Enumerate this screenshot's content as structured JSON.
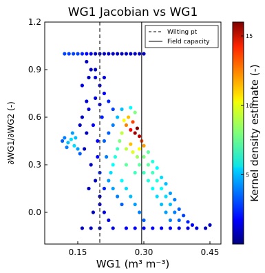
{
  "chart_data": {
    "type": "scatter",
    "title": "WG1 Jacobian vs WG1",
    "xlabel": "WG1 (m³ m⁻³)",
    "ylabel": "∂WG1/∂WG2 (-)",
    "xlim": [
      0.075,
      0.475
    ],
    "ylim": [
      -0.2,
      1.2
    ],
    "xticks": [
      "0.15",
      "0.30",
      "0.45"
    ],
    "yticks": [
      "1.2",
      "0.9",
      "0.6",
      "0.3",
      "0.0"
    ],
    "grid": false,
    "legend": {
      "placement": "top-right",
      "entries": [
        {
          "label": "Wilting pt",
          "style": "dashed",
          "x": 0.2
        },
        {
          "label": "Field capacity",
          "style": "solid",
          "x": 0.295
        }
      ]
    },
    "colorbar": {
      "label": "Kernel density estimate (-)",
      "range": [
        0,
        16
      ],
      "ticks": [
        "5",
        "10",
        "15"
      ],
      "tick_values": [
        5,
        10,
        15
      ],
      "colormap": "jet"
    },
    "series": [
      {
        "points": [
          {
            "x": 0.135,
            "y": 0.46,
            "density": 5.5
          },
          {
            "x": 0.128,
            "y": 0.44,
            "density": 5
          },
          {
            "x": 0.142,
            "y": 0.42,
            "density": 5.5
          },
          {
            "x": 0.12,
            "y": 0.47,
            "density": 4
          },
          {
            "x": 0.15,
            "y": 0.4,
            "density": 4.5
          },
          {
            "x": 0.138,
            "y": 0.5,
            "density": 4.5
          },
          {
            "x": 0.125,
            "y": 0.41,
            "density": 4
          },
          {
            "x": 0.155,
            "y": 0.37,
            "density": 3.5
          },
          {
            "x": 0.115,
            "y": 0.45,
            "density": 3.5
          },
          {
            "x": 0.145,
            "y": 0.47,
            "density": 5
          },
          {
            "x": 0.26,
            "y": 0.55,
            "density": 12
          },
          {
            "x": 0.27,
            "y": 0.52,
            "density": 14
          },
          {
            "x": 0.28,
            "y": 0.5,
            "density": 15.5
          },
          {
            "x": 0.285,
            "y": 0.53,
            "density": 16
          },
          {
            "x": 0.29,
            "y": 0.48,
            "density": 15
          },
          {
            "x": 0.275,
            "y": 0.57,
            "density": 13
          },
          {
            "x": 0.265,
            "y": 0.6,
            "density": 11
          },
          {
            "x": 0.295,
            "y": 0.45,
            "density": 13
          },
          {
            "x": 0.3,
            "y": 0.42,
            "density": 11.5
          },
          {
            "x": 0.255,
            "y": 0.58,
            "density": 10
          },
          {
            "x": 0.25,
            "y": 0.5,
            "density": 9
          },
          {
            "x": 0.245,
            "y": 0.45,
            "density": 8
          },
          {
            "x": 0.24,
            "y": 0.4,
            "density": 7
          },
          {
            "x": 0.235,
            "y": 0.35,
            "density": 6.5
          },
          {
            "x": 0.23,
            "y": 0.3,
            "density": 6
          },
          {
            "x": 0.225,
            "y": 0.25,
            "density": 5.5
          },
          {
            "x": 0.26,
            "y": 0.4,
            "density": 9
          },
          {
            "x": 0.27,
            "y": 0.43,
            "density": 11
          },
          {
            "x": 0.275,
            "y": 0.38,
            "density": 9.5
          },
          {
            "x": 0.285,
            "y": 0.35,
            "density": 8.5
          },
          {
            "x": 0.29,
            "y": 0.3,
            "density": 7.5
          },
          {
            "x": 0.3,
            "y": 0.25,
            "density": 7
          },
          {
            "x": 0.31,
            "y": 0.2,
            "density": 6.5
          },
          {
            "x": 0.32,
            "y": 0.15,
            "density": 6
          },
          {
            "x": 0.33,
            "y": 0.1,
            "density": 5.5
          },
          {
            "x": 0.34,
            "y": 0.05,
            "density": 5
          },
          {
            "x": 0.35,
            "y": 0.0,
            "density": 4.5
          },
          {
            "x": 0.36,
            "y": -0.05,
            "density": 4
          },
          {
            "x": 0.3,
            "y": 0.35,
            "density": 8
          },
          {
            "x": 0.31,
            "y": 0.3,
            "density": 7.5
          },
          {
            "x": 0.32,
            "y": 0.25,
            "density": 7
          },
          {
            "x": 0.33,
            "y": 0.2,
            "density": 6.5
          },
          {
            "x": 0.34,
            "y": 0.15,
            "density": 6
          },
          {
            "x": 0.35,
            "y": 0.1,
            "density": 5.5
          },
          {
            "x": 0.36,
            "y": 0.05,
            "density": 5
          },
          {
            "x": 0.37,
            "y": 0.0,
            "density": 4
          },
          {
            "x": 0.38,
            "y": -0.05,
            "density": 3.5
          },
          {
            "x": 0.25,
            "y": 0.2,
            "density": 6
          },
          {
            "x": 0.26,
            "y": 0.15,
            "density": 5.5
          },
          {
            "x": 0.27,
            "y": 0.1,
            "density": 5
          },
          {
            "x": 0.28,
            "y": 0.05,
            "density": 4.5
          },
          {
            "x": 0.29,
            "y": 0.0,
            "density": 4
          },
          {
            "x": 0.3,
            "y": -0.05,
            "density": 3.5
          },
          {
            "x": 0.24,
            "y": 0.1,
            "density": 4
          },
          {
            "x": 0.25,
            "y": 0.05,
            "density": 3.5
          },
          {
            "x": 0.23,
            "y": 0.15,
            "density": 4.5
          },
          {
            "x": 0.22,
            "y": 0.2,
            "density": 4.5
          },
          {
            "x": 0.26,
            "y": 0.3,
            "density": 7.5
          },
          {
            "x": 0.28,
            "y": 0.25,
            "density": 7
          },
          {
            "x": 0.29,
            "y": 0.4,
            "density": 10
          },
          {
            "x": 0.31,
            "y": 0.38,
            "density": 7.5
          },
          {
            "x": 0.32,
            "y": 0.32,
            "density": 6.5
          },
          {
            "x": 0.33,
            "y": 0.28,
            "density": 6
          },
          {
            "x": 0.34,
            "y": 0.22,
            "density": 5.5
          },
          {
            "x": 0.35,
            "y": 0.18,
            "density": 5
          },
          {
            "x": 0.36,
            "y": 0.12,
            "density": 4.5
          },
          {
            "x": 0.37,
            "y": 0.08,
            "density": 4
          },
          {
            "x": 0.38,
            "y": 0.02,
            "density": 3.5
          },
          {
            "x": 0.39,
            "y": -0.02,
            "density": 3
          },
          {
            "x": 0.4,
            "y": -0.06,
            "density": 2.5
          },
          {
            "x": 0.41,
            "y": -0.08,
            "density": 2
          },
          {
            "x": 0.42,
            "y": -0.1,
            "density": 1.5
          },
          {
            "x": 0.44,
            "y": -0.1,
            "density": 1
          },
          {
            "x": 0.45,
            "y": -0.08,
            "density": 1
          },
          {
            "x": 0.215,
            "y": 0.35,
            "density": 4
          },
          {
            "x": 0.21,
            "y": 0.45,
            "density": 3.5
          },
          {
            "x": 0.22,
            "y": 0.5,
            "density": 3.5
          },
          {
            "x": 0.23,
            "y": 0.55,
            "density": 4
          },
          {
            "x": 0.24,
            "y": 0.6,
            "density": 5
          },
          {
            "x": 0.25,
            "y": 0.65,
            "density": 5
          },
          {
            "x": 0.27,
            "y": 0.66,
            "density": 6
          },
          {
            "x": 0.28,
            "y": 0.63,
            "density": 8
          },
          {
            "x": 0.23,
            "y": 0.65,
            "density": 3
          },
          {
            "x": 0.22,
            "y": 0.7,
            "density": 2.5
          },
          {
            "x": 0.21,
            "y": 0.75,
            "density": 2
          },
          {
            "x": 0.2,
            "y": 0.8,
            "density": 1.5
          },
          {
            "x": 0.19,
            "y": 0.85,
            "density": 1.5
          },
          {
            "x": 0.18,
            "y": 0.9,
            "density": 1
          },
          {
            "x": 0.17,
            "y": 0.95,
            "density": 1
          },
          {
            "x": 0.16,
            "y": 0.8,
            "density": 1.5
          },
          {
            "x": 0.17,
            "y": 0.7,
            "density": 1.5
          },
          {
            "x": 0.16,
            "y": 0.6,
            "density": 1
          },
          {
            "x": 0.17,
            "y": 0.5,
            "density": 1
          },
          {
            "x": 0.165,
            "y": 0.4,
            "density": 1
          },
          {
            "x": 0.18,
            "y": 0.3,
            "density": 1
          },
          {
            "x": 0.19,
            "y": 0.2,
            "density": 1
          },
          {
            "x": 0.2,
            "y": 0.1,
            "density": 1
          },
          {
            "x": 0.21,
            "y": 0.0,
            "density": 1.5
          },
          {
            "x": 0.22,
            "y": -0.05,
            "density": 1.5
          },
          {
            "x": 0.18,
            "y": -0.1,
            "density": 1
          },
          {
            "x": 0.16,
            "y": -0.1,
            "density": 1
          },
          {
            "x": 0.2,
            "y": -0.1,
            "density": 1
          },
          {
            "x": 0.23,
            "y": -0.1,
            "density": 1.5
          },
          {
            "x": 0.26,
            "y": -0.1,
            "density": 2
          },
          {
            "x": 0.28,
            "y": -0.1,
            "density": 2
          },
          {
            "x": 0.3,
            "y": -0.1,
            "density": 2
          },
          {
            "x": 0.32,
            "y": -0.1,
            "density": 2
          },
          {
            "x": 0.34,
            "y": -0.1,
            "density": 2
          },
          {
            "x": 0.36,
            "y": -0.1,
            "density": 2
          },
          {
            "x": 0.38,
            "y": -0.1,
            "density": 1.5
          },
          {
            "x": 0.4,
            "y": -0.1,
            "density": 1.5
          },
          {
            "x": 0.175,
            "y": 0.65,
            "density": 1.5
          },
          {
            "x": 0.185,
            "y": 0.55,
            "density": 2
          },
          {
            "x": 0.195,
            "y": 0.45,
            "density": 2
          },
          {
            "x": 0.205,
            "y": 0.6,
            "density": 2.5
          },
          {
            "x": 0.19,
            "y": 0.72,
            "density": 1.5
          },
          {
            "x": 0.2,
            "y": 0.68,
            "density": 2
          },
          {
            "x": 0.195,
            "y": 0.35,
            "density": 2
          },
          {
            "x": 0.2,
            "y": 0.25,
            "density": 2.5
          },
          {
            "x": 0.21,
            "y": 0.15,
            "density": 2.5
          },
          {
            "x": 0.2,
            "y": 0.05,
            "density": 1.5
          },
          {
            "x": 0.175,
            "y": 0.15,
            "density": 1
          },
          {
            "x": 0.185,
            "y": 0.0,
            "density": 1
          },
          {
            "x": 0.19,
            "y": 0.9,
            "density": 1
          },
          {
            "x": 0.21,
            "y": 0.85,
            "density": 1.5
          },
          {
            "x": 0.175,
            "y": 0.85,
            "density": 1
          },
          {
            "x": 0.155,
            "y": 0.55,
            "density": 1
          },
          {
            "x": 0.12,
            "y": 1.0,
            "density": 3
          },
          {
            "x": 0.13,
            "y": 1.0,
            "density": 3
          },
          {
            "x": 0.14,
            "y": 1.0,
            "density": 3
          },
          {
            "x": 0.15,
            "y": 1.0,
            "density": 3
          },
          {
            "x": 0.16,
            "y": 1.0,
            "density": 2.5
          },
          {
            "x": 0.17,
            "y": 1.0,
            "density": 2
          },
          {
            "x": 0.18,
            "y": 1.0,
            "density": 1.5
          },
          {
            "x": 0.19,
            "y": 1.0,
            "density": 1
          },
          {
            "x": 0.2,
            "y": 1.0,
            "density": 1
          },
          {
            "x": 0.21,
            "y": 1.0,
            "density": 1
          },
          {
            "x": 0.22,
            "y": 1.0,
            "density": 1
          },
          {
            "x": 0.23,
            "y": 1.0,
            "density": 1
          },
          {
            "x": 0.24,
            "y": 1.0,
            "density": 1
          },
          {
            "x": 0.25,
            "y": 1.0,
            "density": 1
          },
          {
            "x": 0.26,
            "y": 1.0,
            "density": 1
          },
          {
            "x": 0.27,
            "y": 1.0,
            "density": 1
          },
          {
            "x": 0.28,
            "y": 1.0,
            "density": 1
          },
          {
            "x": 0.29,
            "y": 1.0,
            "density": 1
          },
          {
            "x": 0.3,
            "y": 1.0,
            "density": 1
          }
        ]
      }
    ]
  }
}
